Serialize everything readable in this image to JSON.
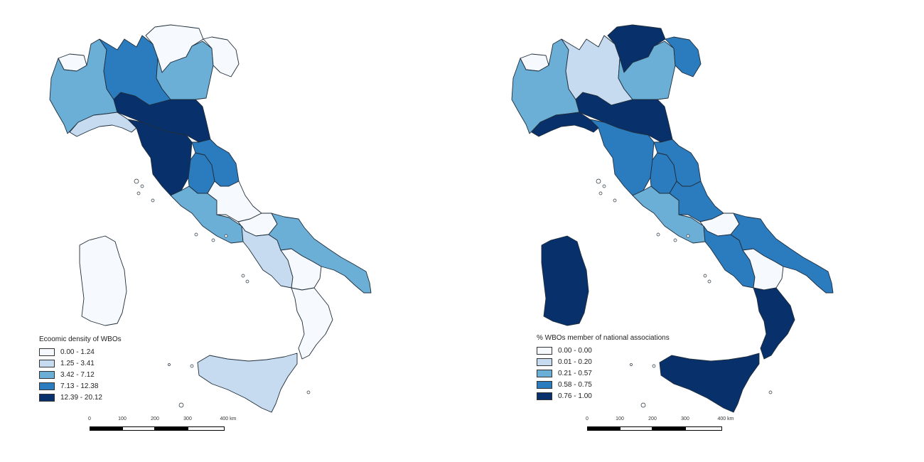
{
  "palette": [
    "#f6f9fe",
    "#c6dbef",
    "#6baed6",
    "#2b7bbf",
    "#08306b"
  ],
  "left_map": {
    "legend_title": "Ecoomic density of WBOs",
    "legend": [
      {
        "label": "0.00 - 1.24",
        "color": "#f6f9fe"
      },
      {
        "label": "1.25 - 3.41",
        "color": "#c6dbef"
      },
      {
        "label": "3.42 - 7.12",
        "color": "#6baed6"
      },
      {
        "label": "7.13 - 12.38",
        "color": "#2b7bbf"
      },
      {
        "label": "12.39 - 20.12",
        "color": "#08306b"
      }
    ],
    "region_class": {
      "valle-daosta": 0,
      "piemonte": 2,
      "lombardia": 3,
      "trentino": 0,
      "veneto": 2,
      "friuli": 0,
      "liguria": 1,
      "emilia-romagna": 4,
      "toscana": 4,
      "umbria": 3,
      "marche": 3,
      "lazio": 2,
      "abruzzo": 0,
      "molise": 0,
      "campania": 1,
      "puglia": 2,
      "basilicata": 0,
      "calabria": 0,
      "sicilia": 1,
      "sardegna": 0
    },
    "scale_labels": [
      "0",
      "100",
      "200",
      "300",
      "400 km"
    ]
  },
  "right_map": {
    "legend_title": "% WBOs member of national associations",
    "legend": [
      {
        "label": "0.00 - 0.00",
        "color": "#f6f9fe"
      },
      {
        "label": "0.01 - 0.20",
        "color": "#c6dbef"
      },
      {
        "label": "0.21 - 0.57",
        "color": "#6baed6"
      },
      {
        "label": "0.58 - 0.75",
        "color": "#2b7bbf"
      },
      {
        "label": "0.76 - 1.00",
        "color": "#08306b"
      }
    ],
    "region_class": {
      "valle-daosta": 0,
      "piemonte": 2,
      "lombardia": 1,
      "trentino": 4,
      "veneto": 2,
      "friuli": 3,
      "liguria": 4,
      "emilia-romagna": 4,
      "toscana": 3,
      "umbria": 3,
      "marche": 3,
      "lazio": 2,
      "abruzzo": 3,
      "molise": 0,
      "campania": 3,
      "puglia": 3,
      "basilicata": 0,
      "calabria": 4,
      "sicilia": 4,
      "sardegna": 4
    },
    "scale_labels": [
      "0",
      "100",
      "200",
      "300",
      "400 km"
    ]
  }
}
